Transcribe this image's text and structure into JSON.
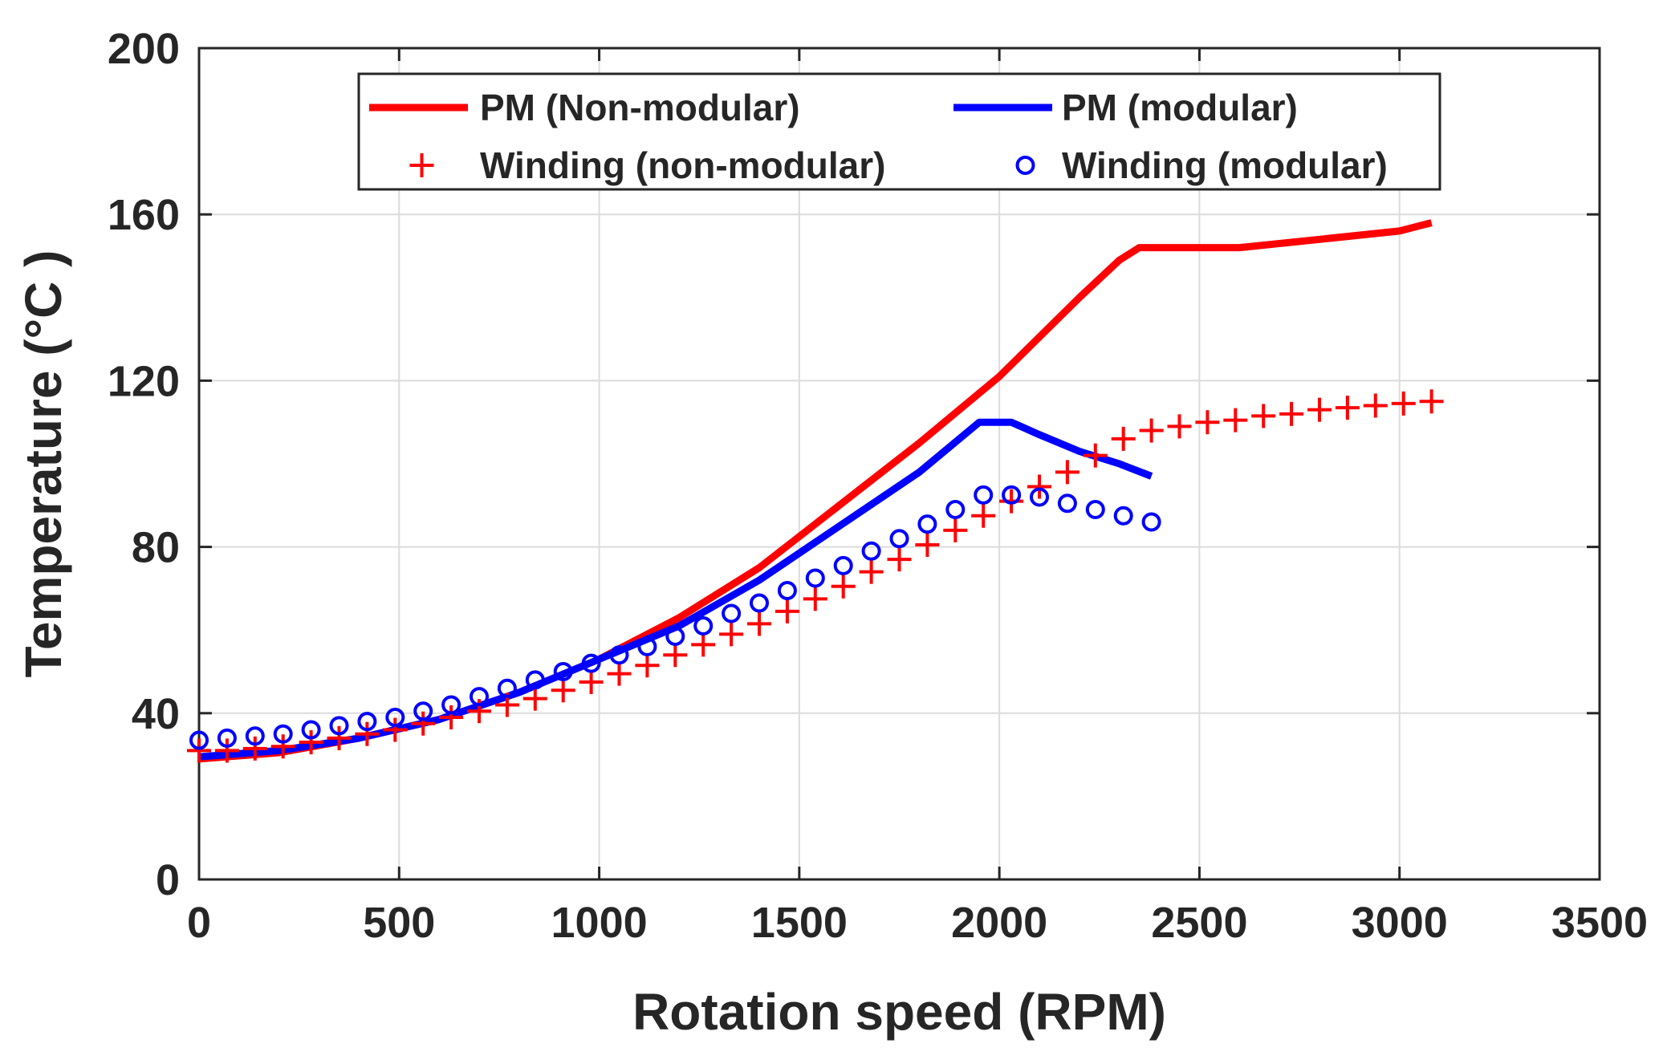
{
  "chart_data": {
    "type": "line",
    "title": "",
    "xlabel": "Rotation speed (RPM)",
    "ylabel": "Temperature (°C )",
    "xlim": [
      0,
      3500
    ],
    "ylim": [
      0,
      200
    ],
    "xticks": [
      0,
      500,
      1000,
      1500,
      2000,
      2500,
      3000,
      3500
    ],
    "yticks": [
      0,
      40,
      80,
      120,
      160,
      200
    ],
    "xtick_labels": [
      "0",
      "500",
      "1000",
      "1500",
      "2000",
      "2500",
      "3000",
      "3500"
    ],
    "ytick_labels": [
      "0",
      "40",
      "80",
      "120",
      "160",
      "200"
    ],
    "grid": true,
    "legend_position": "top",
    "series": [
      {
        "name": "PM (Non-modular)",
        "style": "line",
        "color": "#ff0000",
        "x": [
          0,
          200,
          400,
          600,
          800,
          1000,
          1200,
          1400,
          1600,
          1800,
          2000,
          2200,
          2300,
          2350,
          2400,
          2600,
          2800,
          3000,
          3080
        ],
        "y": [
          29,
          30.5,
          34,
          38.5,
          45,
          53,
          63,
          75,
          90,
          105,
          121,
          140,
          149,
          152,
          152,
          152,
          154,
          156,
          158
        ]
      },
      {
        "name": "PM (modular)",
        "style": "line",
        "color": "#0000ff",
        "x": [
          0,
          200,
          400,
          600,
          800,
          1000,
          1200,
          1400,
          1600,
          1800,
          1950,
          2030,
          2100,
          2200,
          2300,
          2380
        ],
        "y": [
          29.5,
          31,
          34,
          38.5,
          45,
          53,
          61,
          72,
          85,
          98,
          110,
          110,
          107,
          103,
          100,
          97
        ]
      },
      {
        "name": "Winding (non-modular)",
        "style": "marker-plus",
        "color": "#ff0000",
        "x": [
          0,
          70,
          140,
          210,
          280,
          350,
          420,
          490,
          560,
          630,
          700,
          770,
          840,
          910,
          980,
          1050,
          1120,
          1190,
          1260,
          1330,
          1400,
          1470,
          1540,
          1610,
          1680,
          1750,
          1820,
          1890,
          1960,
          2030,
          2100,
          2170,
          2240,
          2310,
          2380,
          2450,
          2520,
          2590,
          2660,
          2730,
          2800,
          2870,
          2940,
          3010,
          3080
        ],
        "y": [
          31,
          31,
          31.5,
          32,
          33,
          34,
          35,
          36,
          37.5,
          39,
          40.5,
          42,
          43.5,
          45.5,
          47.5,
          49.5,
          51.5,
          54,
          56.5,
          59,
          61.5,
          64.5,
          67.5,
          70.5,
          74,
          77,
          80.5,
          84,
          87.5,
          91,
          94.5,
          98,
          102,
          106,
          108,
          109,
          110,
          110.5,
          111.5,
          112,
          113,
          113.5,
          114,
          114.5,
          115
        ]
      },
      {
        "name": "Winding (modular)",
        "style": "marker-circle",
        "color": "#0000ff",
        "x": [
          0,
          70,
          140,
          210,
          280,
          350,
          420,
          490,
          560,
          630,
          700,
          770,
          840,
          910,
          980,
          1050,
          1120,
          1190,
          1260,
          1330,
          1400,
          1470,
          1540,
          1610,
          1680,
          1750,
          1820,
          1890,
          1960,
          2030,
          2100,
          2170,
          2240,
          2310,
          2380
        ],
        "y": [
          33.5,
          34,
          34.5,
          35,
          36,
          37,
          38,
          39,
          40.5,
          42,
          44,
          46,
          48,
          50,
          52,
          54,
          56,
          58.5,
          61,
          64,
          66.5,
          69.5,
          72.5,
          75.5,
          79,
          82,
          85.5,
          89,
          92.5,
          92.5,
          92,
          90.5,
          89,
          87.5,
          86
        ]
      }
    ]
  }
}
